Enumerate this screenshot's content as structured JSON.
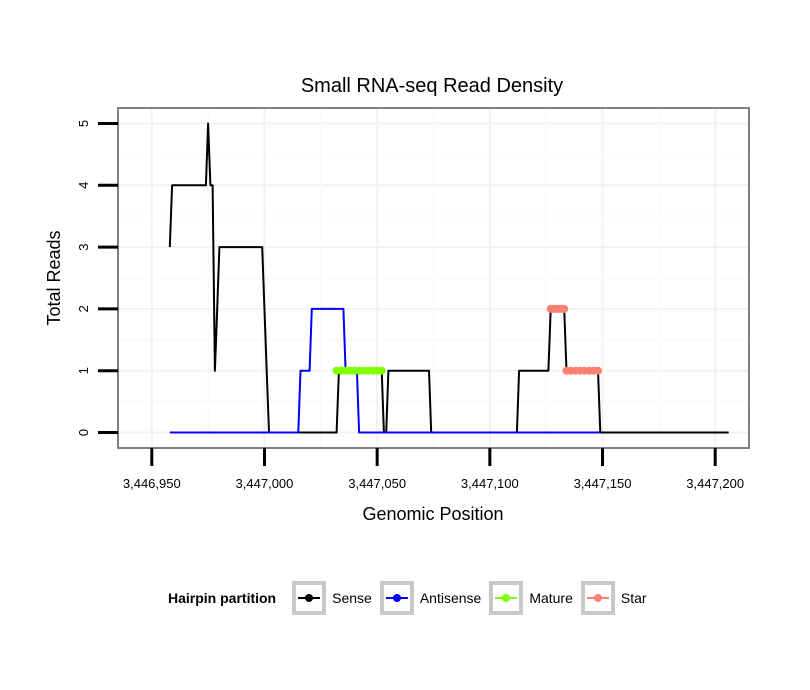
{
  "chart_data": {
    "type": "line",
    "title": "Small RNA-seq Read Density",
    "xlabel": "Genomic Position",
    "ylabel": "Total Reads",
    "xlim": [
      3446935,
      3447215
    ],
    "ylim": [
      -0.25,
      5.25
    ],
    "xticks": [
      3446950,
      3447000,
      3447050,
      3447100,
      3447150,
      3447200
    ],
    "xtick_labels": [
      "3,446,950",
      "3,447,000",
      "3,447,050",
      "3,447,100",
      "3,447,150",
      "3,447,200"
    ],
    "yticks": [
      0,
      1,
      2,
      3,
      4,
      5
    ],
    "ytick_labels": [
      "0",
      "1",
      "2",
      "3",
      "4",
      "5"
    ],
    "grid": true,
    "series": [
      {
        "name": "Sense",
        "color": "#000000",
        "style": "line",
        "x": [
          3446958,
          3446959,
          3446974,
          3446975,
          3446976,
          3446977,
          3446978,
          3446979,
          3446980,
          3446999,
          3447001,
          3447002,
          3447032,
          3447033,
          3447052,
          3447053,
          3447054,
          3447055,
          3447073,
          3447074,
          3447112,
          3447113,
          3447126,
          3447127,
          3447133,
          3447134,
          3447148,
          3447149,
          3447206
        ],
        "y": [
          3,
          4,
          4,
          5,
          4,
          4,
          1,
          2,
          3,
          3,
          1,
          0,
          0,
          1,
          1,
          0,
          0,
          1,
          1,
          0,
          0,
          1,
          1,
          2,
          2,
          1,
          1,
          0,
          0
        ]
      },
      {
        "name": "Antisense",
        "color": "#0000ff",
        "style": "line",
        "x": [
          3446958,
          3447015,
          3447016,
          3447020,
          3447021,
          3447035,
          3447036,
          3447041,
          3447042,
          3447149
        ],
        "y": [
          0,
          0,
          1,
          1,
          2,
          2,
          1,
          1,
          0,
          0
        ]
      },
      {
        "name": "Mature",
        "color": "#7fff00",
        "style": "points",
        "x": [
          3447032,
          3447034,
          3447036,
          3447038,
          3447040,
          3447042,
          3447044,
          3447046,
          3447048,
          3447050,
          3447052
        ],
        "y": [
          1,
          1,
          1,
          1,
          1,
          1,
          1,
          1,
          1,
          1,
          1
        ]
      },
      {
        "name": "Star",
        "color": "#fa8072",
        "style": "points",
        "x": [
          3447127,
          3447128,
          3447129,
          3447130,
          3447131,
          3447132,
          3447133,
          3447134,
          3447136,
          3447138,
          3447140,
          3447142,
          3447144,
          3447146,
          3447148
        ],
        "y": [
          2,
          2,
          2,
          2,
          2,
          2,
          2,
          1,
          1,
          1,
          1,
          1,
          1,
          1,
          1
        ]
      }
    ],
    "legend": {
      "title": "Hairpin partition",
      "placement": "bottom",
      "entries": [
        "Sense",
        "Antisense",
        "Mature",
        "Star"
      ]
    }
  }
}
